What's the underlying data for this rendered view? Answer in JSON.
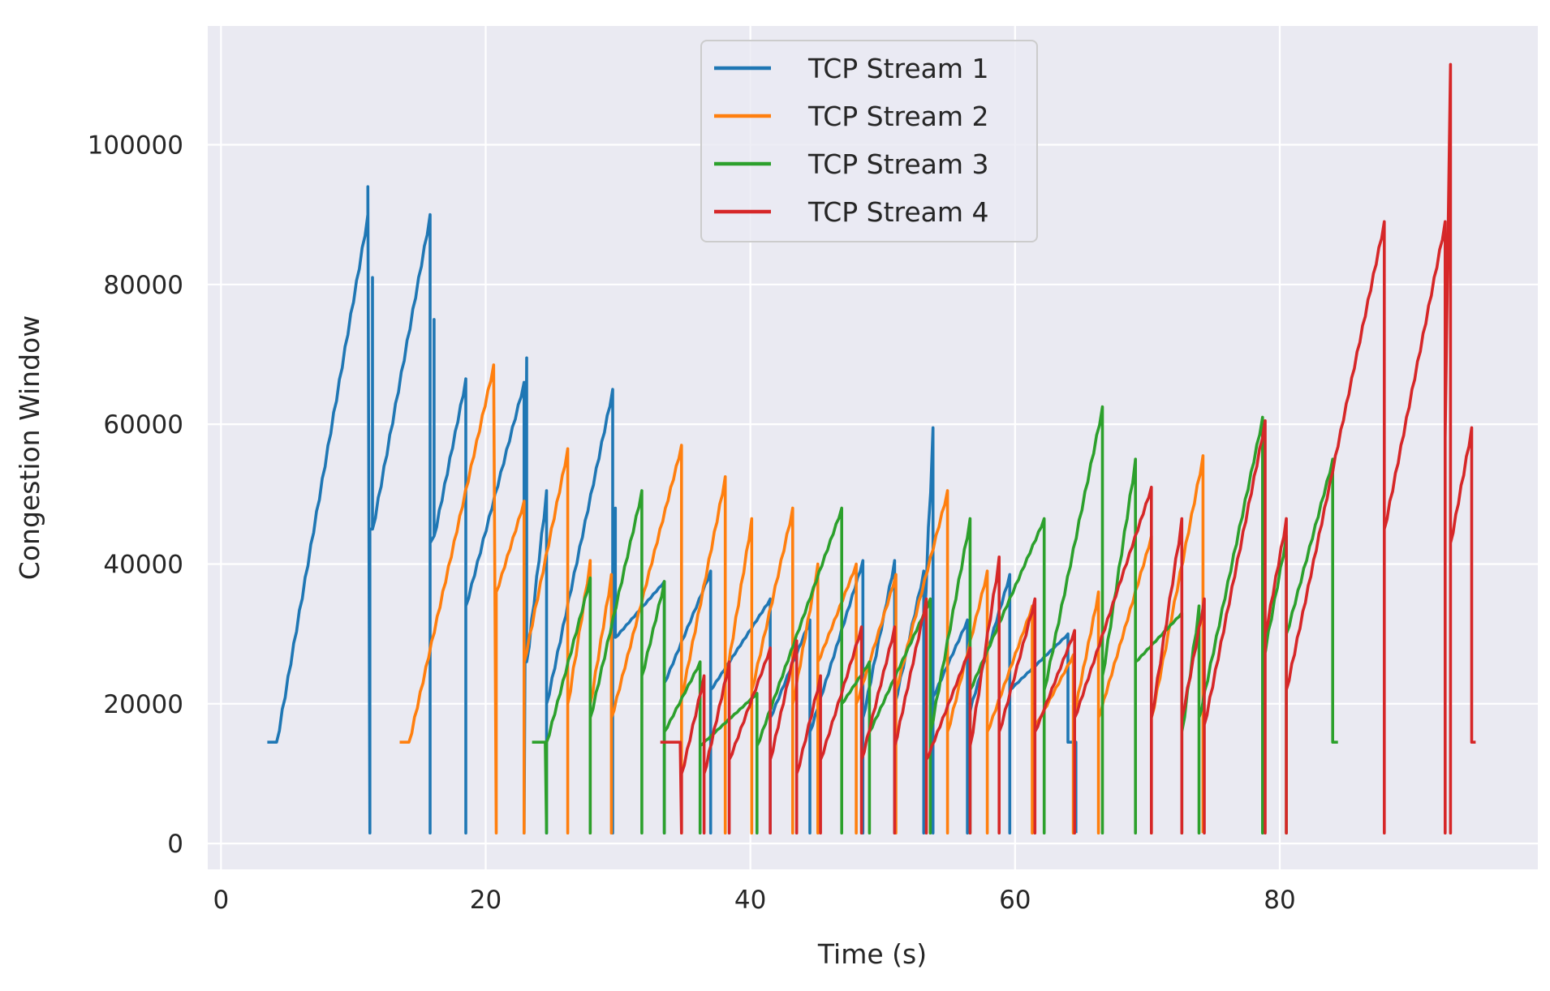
{
  "chart_data": {
    "type": "line",
    "title": "",
    "xlabel": "Time (s)",
    "ylabel": "Congestion Window",
    "xlim": [
      -1,
      99.5
    ],
    "ylim": [
      -3700,
      117000
    ],
    "xticks": [
      0,
      20,
      40,
      60,
      80
    ],
    "yticks": [
      0,
      20000,
      40000,
      60000,
      80000,
      100000
    ],
    "grid": true,
    "legend_position": "top-center",
    "background": "#eaeaf2",
    "series": [
      {
        "name": "TCP Stream 1",
        "color": "#1f77b4",
        "cycles": [
          [
            3.5,
            14500,
            4.2,
            14500,
            11.1,
            90000
          ],
          [
            11.1,
            94000,
            11.25,
            1500
          ],
          [
            11.25,
            45000,
            11.45,
            45000,
            11.45,
            81000
          ],
          [
            11.45,
            45000,
            15.8,
            90000,
            15.8,
            1500
          ],
          [
            15.8,
            43000,
            16.1,
            44000,
            16.1,
            75000
          ],
          [
            16.1,
            44000,
            18.5,
            66500,
            18.5,
            1500
          ],
          [
            18.5,
            34000,
            22.9,
            66000
          ],
          [
            22.9,
            1500,
            23.1,
            69500,
            23.1,
            26000
          ],
          [
            23.1,
            26000,
            24.6,
            50500,
            24.6,
            1500
          ],
          [
            24.6,
            20000,
            29.6,
            65000,
            29.6,
            1500
          ],
          [
            29.6,
            29500,
            29.8,
            48000,
            29.8,
            29500
          ],
          [
            29.8,
            29500,
            33.5,
            37500,
            33.5,
            1500
          ],
          [
            33.5,
            23000,
            37.0,
            39000,
            37.0,
            1500
          ],
          [
            37.0,
            22000,
            41.5,
            35000,
            41.5,
            1500
          ],
          [
            41.5,
            18000,
            44.5,
            32000,
            44.5,
            1500
          ],
          [
            44.5,
            16000,
            48.5,
            40500,
            48.5,
            1500
          ],
          [
            48.5,
            18000,
            50.9,
            40500,
            50.9,
            1500
          ],
          [
            50.9,
            20000,
            53.1,
            39000,
            53.1,
            1500
          ],
          [
            53.1,
            31000,
            53.8,
            59500,
            53.8,
            1500
          ],
          [
            53.8,
            21000,
            56.4,
            32000,
            56.4,
            1500
          ],
          [
            56.4,
            18000,
            59.6,
            38500,
            59.6,
            1500
          ],
          [
            59.6,
            22000,
            64.0,
            30000,
            64.0,
            14500
          ],
          [
            64.0,
            14500,
            64.6,
            14500,
            64.6,
            1500
          ]
        ]
      },
      {
        "name": "TCP Stream 2",
        "color": "#ff7f0e",
        "cycles": [
          [
            13.5,
            14500,
            14.2,
            14500,
            20.6,
            68500
          ],
          [
            20.6,
            68500,
            20.8,
            1500
          ],
          [
            20.8,
            36000,
            22.9,
            49000,
            22.9,
            1500
          ],
          [
            22.9,
            26000,
            26.2,
            56500,
            26.2,
            1500
          ],
          [
            26.2,
            20000,
            27.9,
            40500,
            27.9,
            1500
          ],
          [
            27.9,
            20000,
            29.5,
            38500,
            29.5,
            1500
          ],
          [
            29.5,
            18000,
            34.8,
            57000,
            34.8,
            1500
          ],
          [
            34.8,
            21000,
            38.1,
            52500,
            38.1,
            1500
          ],
          [
            38.1,
            23000,
            40.1,
            46500,
            40.1,
            1500
          ],
          [
            40.1,
            22000,
            43.2,
            48000,
            43.2,
            1500
          ],
          [
            43.2,
            20000,
            45.1,
            40000,
            45.1,
            1500
          ],
          [
            45.1,
            26000,
            48.0,
            40000,
            48.0,
            1500
          ],
          [
            48.0,
            20000,
            51.0,
            38500,
            51.0,
            1500
          ],
          [
            51.0,
            22000,
            54.9,
            50500,
            54.9,
            1500
          ],
          [
            54.9,
            16000,
            57.9,
            39000,
            57.9,
            1500
          ],
          [
            57.9,
            16000,
            61.3,
            34000,
            61.3,
            1500
          ],
          [
            61.3,
            16000,
            64.4,
            27000,
            64.4,
            1500
          ],
          [
            64.4,
            18000,
            66.3,
            36000,
            66.3,
            1500
          ],
          [
            66.3,
            18000,
            70.3,
            44000,
            70.3,
            1500
          ],
          [
            70.3,
            18000,
            74.2,
            55500,
            74.2,
            1500
          ]
        ]
      },
      {
        "name": "TCP Stream 3",
        "color": "#2ca02c",
        "cycles": [
          [
            23.5,
            14500,
            24.5,
            14500,
            24.6,
            1500
          ],
          [
            24.6,
            14500,
            27.9,
            38000,
            27.9,
            1500
          ],
          [
            27.9,
            18000,
            31.8,
            50500,
            31.8,
            1500
          ],
          [
            31.8,
            24000,
            33.5,
            37500,
            33.5,
            1500
          ],
          [
            33.5,
            16000,
            36.2,
            26000,
            36.2,
            1500
          ],
          [
            36.2,
            14000,
            40.5,
            21500,
            40.5,
            1500
          ],
          [
            40.5,
            14000,
            46.9,
            48000,
            46.9,
            1500
          ],
          [
            46.9,
            20000,
            49.0,
            26000,
            49.0,
            1500
          ],
          [
            49.0,
            16000,
            53.6,
            35000,
            53.6,
            1500
          ],
          [
            53.6,
            16000,
            56.6,
            46500,
            56.6,
            1500
          ],
          [
            56.6,
            22000,
            62.2,
            46500,
            62.2,
            1500
          ],
          [
            62.2,
            22000,
            66.6,
            62500,
            66.6,
            1500
          ],
          [
            66.6,
            24000,
            69.1,
            55000,
            69.1,
            1500
          ],
          [
            69.1,
            26000,
            72.6,
            33000,
            72.6,
            1500
          ],
          [
            72.6,
            16000,
            73.9,
            34000,
            73.9,
            1500
          ],
          [
            73.9,
            18000,
            78.7,
            61000,
            78.7,
            1500
          ],
          [
            78.7,
            26000,
            80.5,
            44000,
            80.5,
            1500
          ],
          [
            80.5,
            30000,
            84.0,
            55000,
            84.0,
            14500
          ],
          [
            84.0,
            14500,
            84.4,
            14500
          ]
        ]
      },
      {
        "name": "TCP Stream 4",
        "color": "#d62728",
        "cycles": [
          [
            33.2,
            14500,
            34.7,
            14500,
            34.8,
            1500
          ],
          [
            34.8,
            10000,
            36.5,
            24000,
            36.5,
            1500
          ],
          [
            36.5,
            10000,
            38.4,
            26000,
            38.4,
            1500
          ],
          [
            38.4,
            12000,
            41.5,
            28000,
            41.5,
            1500
          ],
          [
            41.5,
            12000,
            43.5,
            29000,
            43.5,
            1500
          ],
          [
            43.5,
            10000,
            45.3,
            24000,
            45.3,
            1500
          ],
          [
            45.3,
            12000,
            48.4,
            31000,
            48.4,
            1500
          ],
          [
            48.4,
            12000,
            50.9,
            31000,
            50.9,
            1500
          ],
          [
            50.9,
            14000,
            53.3,
            35000,
            53.3,
            1500
          ],
          [
            53.3,
            12000,
            56.6,
            28000,
            56.6,
            1500
          ],
          [
            56.6,
            14000,
            58.8,
            41000,
            58.8,
            1500
          ],
          [
            58.8,
            16000,
            61.5,
            35000,
            61.5,
            1500
          ],
          [
            61.5,
            16000,
            64.5,
            30500,
            64.5,
            1500
          ],
          [
            64.5,
            18000,
            70.3,
            51000,
            70.3,
            1500
          ],
          [
            70.3,
            18000,
            72.6,
            46500,
            72.6,
            1500
          ],
          [
            72.6,
            18000,
            74.3,
            35000,
            74.3,
            1500
          ],
          [
            74.3,
            17000,
            78.9,
            60500,
            78.9,
            1500
          ],
          [
            78.9,
            30000,
            80.5,
            46500,
            80.5,
            1500
          ],
          [
            80.5,
            22000,
            87.9,
            89000,
            87.9,
            1500
          ],
          [
            87.9,
            45000,
            92.5,
            89000,
            92.5,
            1500
          ],
          [
            92.5,
            58000,
            92.9,
            111500,
            92.9,
            1500
          ],
          [
            92.9,
            43000,
            94.5,
            59500,
            94.5,
            14500
          ],
          [
            94.5,
            14500,
            94.8,
            14500
          ]
        ]
      }
    ]
  }
}
